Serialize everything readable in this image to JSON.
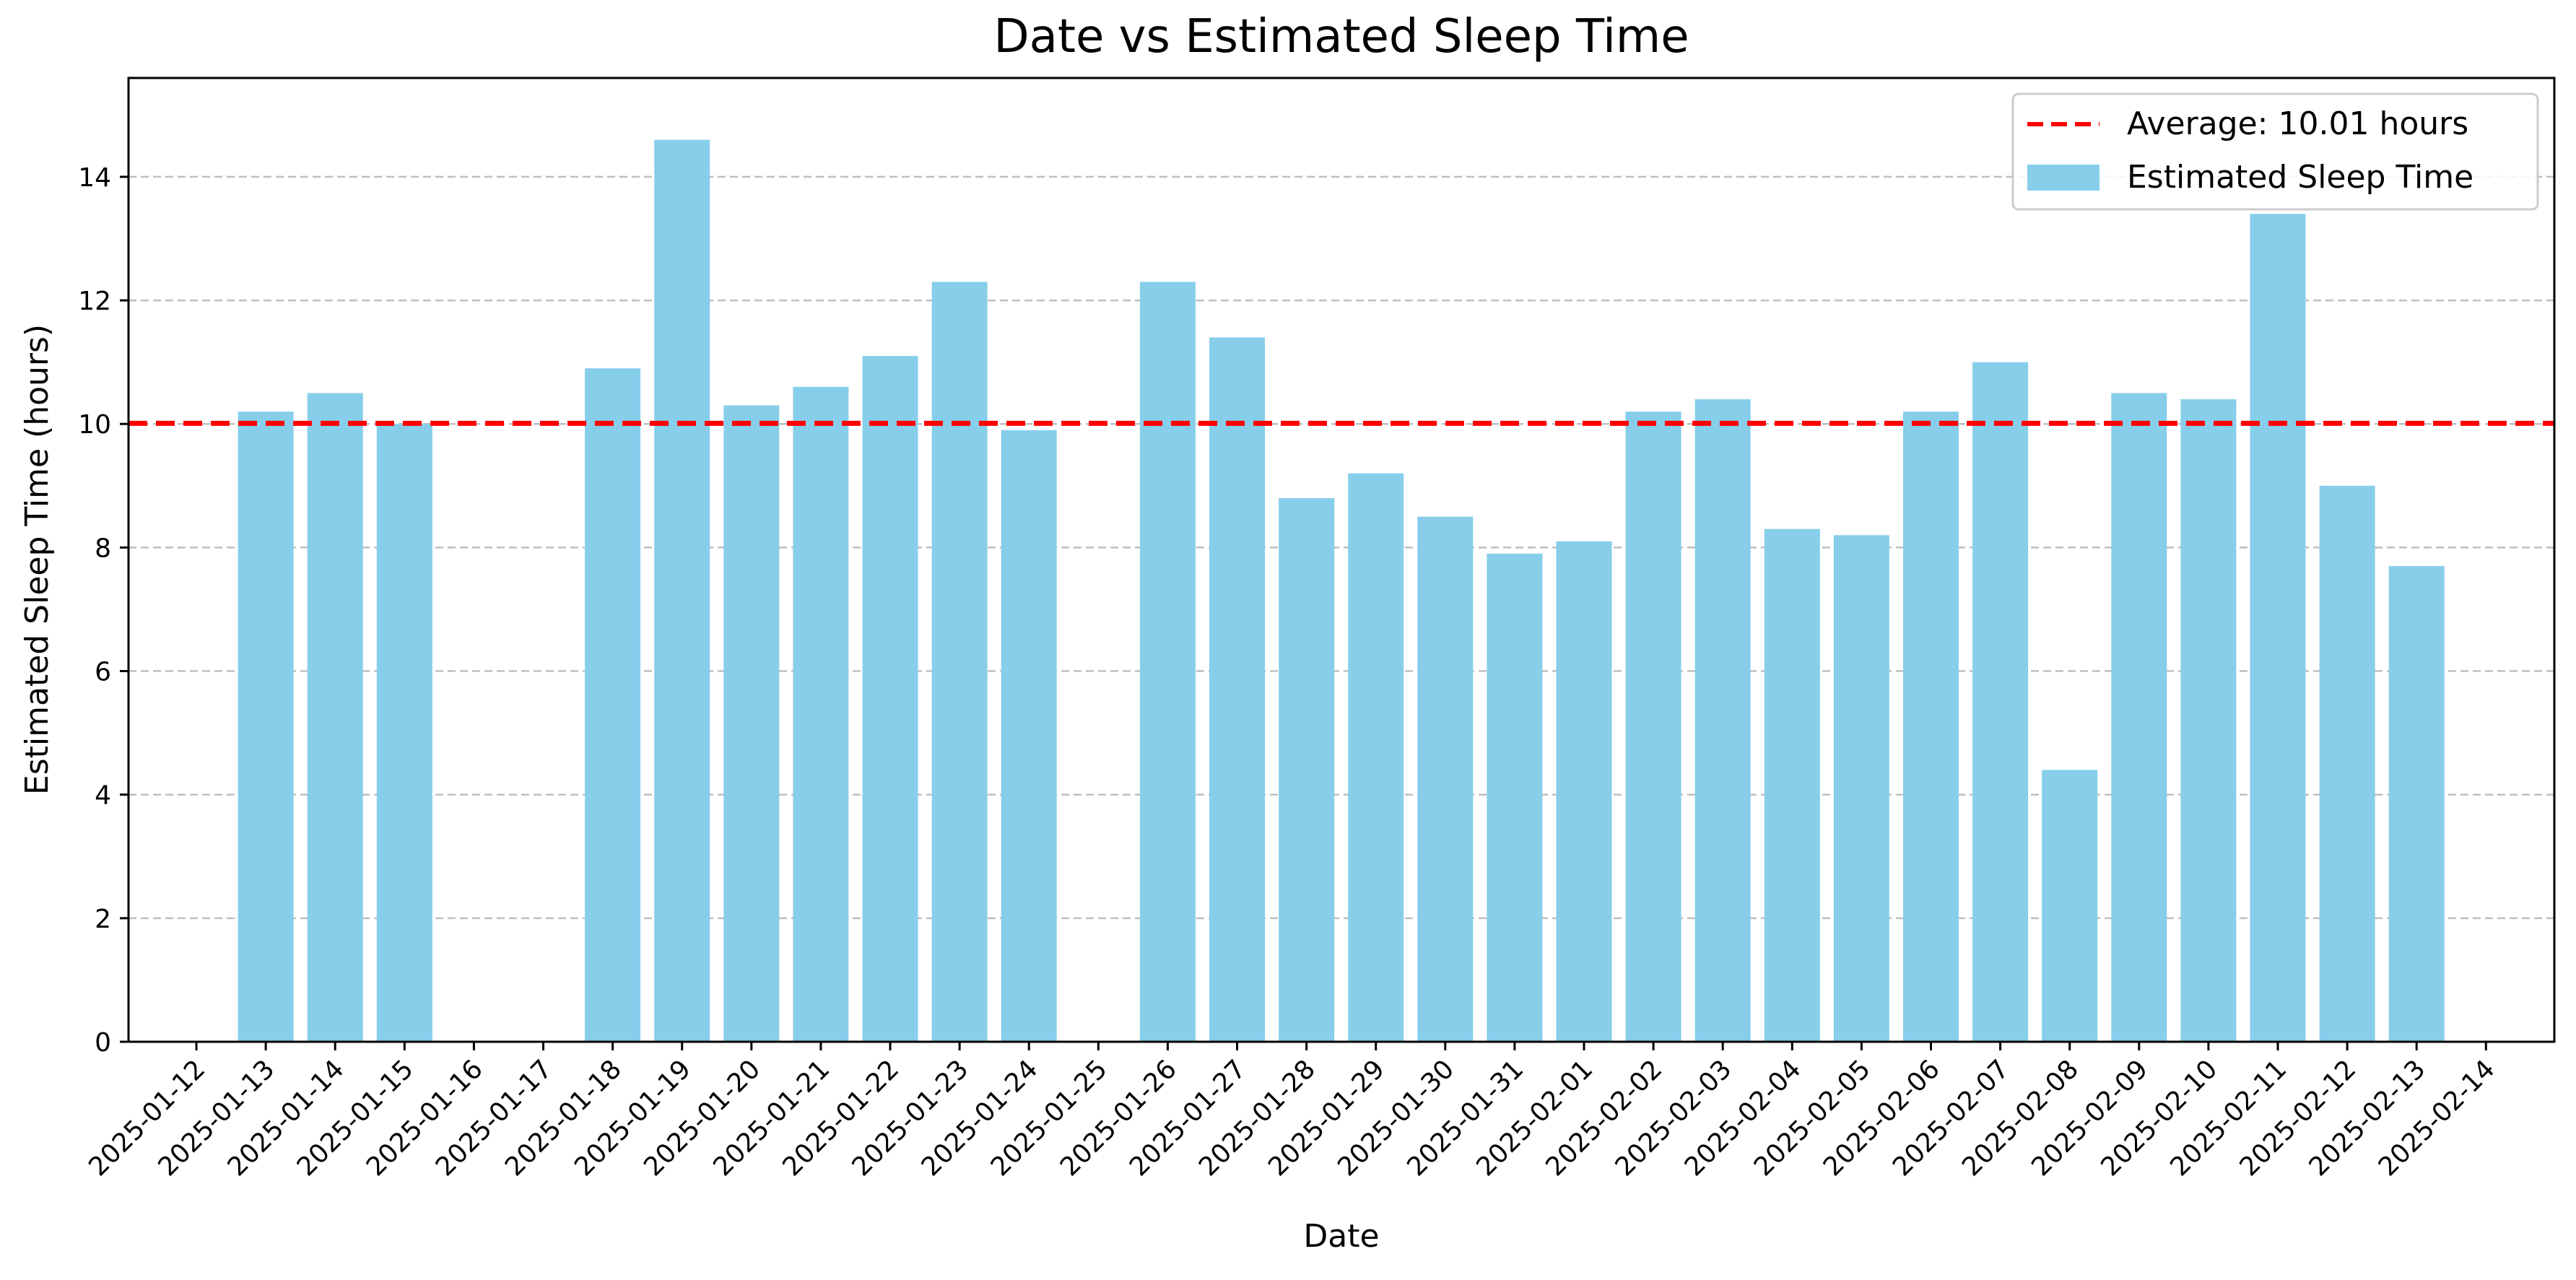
{
  "chart_data": {
    "type": "bar",
    "title": "Date vs Estimated Sleep Time",
    "xlabel": "Date",
    "ylabel": "Estimated Sleep Time (hours)",
    "ylim": [
      0,
      15.6
    ],
    "yticks": [
      0,
      2,
      4,
      6,
      8,
      10,
      12,
      14
    ],
    "grid": "y-dashed",
    "legend_position": "top-right",
    "bar_color": "#87CEEB",
    "average_line_color": "#FF0000",
    "categories": [
      "2025-01-12",
      "2025-01-13",
      "2025-01-14",
      "2025-01-15",
      "2025-01-16",
      "2025-01-17",
      "2025-01-18",
      "2025-01-19",
      "2025-01-20",
      "2025-01-21",
      "2025-01-22",
      "2025-01-23",
      "2025-01-24",
      "2025-01-25",
      "2025-01-26",
      "2025-01-27",
      "2025-01-28",
      "2025-01-29",
      "2025-01-30",
      "2025-01-31",
      "2025-02-01",
      "2025-02-02",
      "2025-02-03",
      "2025-02-04",
      "2025-02-05",
      "2025-02-06",
      "2025-02-07",
      "2025-02-08",
      "2025-02-09",
      "2025-02-10",
      "2025-02-11",
      "2025-02-12",
      "2025-02-13",
      "2025-02-14"
    ],
    "values": [
      null,
      10.2,
      10.5,
      10.0,
      null,
      null,
      10.9,
      14.6,
      10.3,
      10.6,
      11.1,
      12.3,
      9.9,
      null,
      12.3,
      11.4,
      8.8,
      9.2,
      8.5,
      7.9,
      8.1,
      10.2,
      10.4,
      8.3,
      8.2,
      10.2,
      11.0,
      4.4,
      10.5,
      10.4,
      13.4,
      9.0,
      7.7,
      null
    ],
    "average": 10.01,
    "legend": {
      "average_label": "Average: 10.01 hours",
      "series_label": "Estimated Sleep Time"
    }
  }
}
